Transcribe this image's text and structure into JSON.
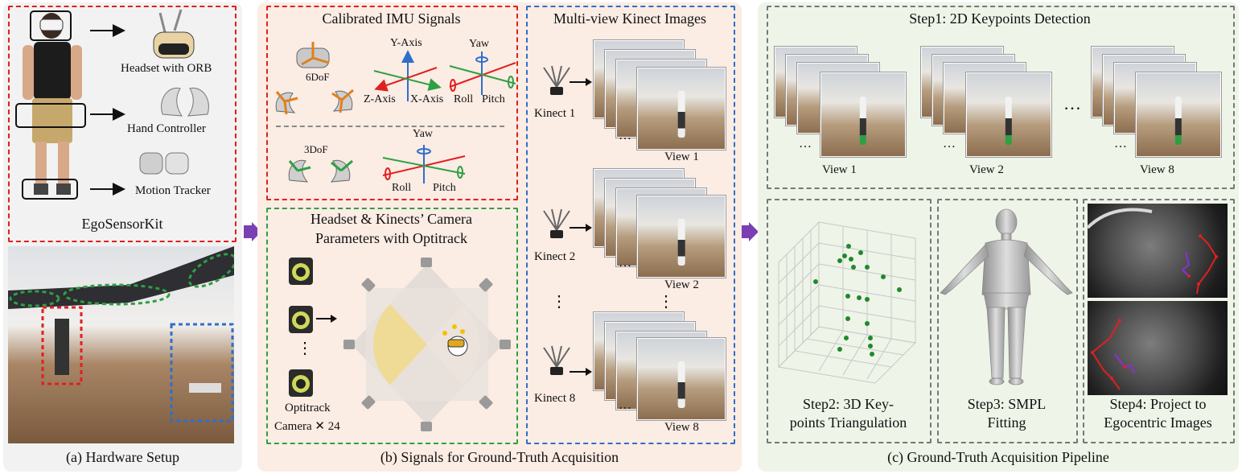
{
  "sections": {
    "a_caption": "(a) Hardware Setup",
    "b_caption": "(b) Signals for Ground-Truth Acquisition",
    "c_caption": "(c) Ground-Truth Acquisition Pipeline"
  },
  "ego_sensor_kit": {
    "title": "EgoSensorKit",
    "headset": "Headset with ORB",
    "hand_controller": "Hand Controller",
    "motion_tracker": "Motion Tracker"
  },
  "imu": {
    "title": "Calibrated IMU Signals",
    "dof6": "6DoF",
    "dof3": "3DoF",
    "y_axis": "Y-Axis",
    "z_axis": "Z-Axis",
    "x_axis": "X-Axis",
    "yaw": "Yaw",
    "roll": "Roll",
    "pitch": "Pitch"
  },
  "camera_params": {
    "title_line1": "Headset & Kinects’ Camera",
    "title_line2": "Parameters with Optitrack",
    "optitrack_line1": "Optitrack",
    "optitrack_line2": "Camera ✕ 24",
    "vdots": "⋮"
  },
  "kinect": {
    "title": "Multi-view Kinect Images",
    "kinect1": "Kinect 1",
    "kinect2": "Kinect 2",
    "kinect8": "Kinect 8",
    "view1": "View 1",
    "view2": "View 2",
    "view8": "View 8",
    "ellipsis": "…",
    "vdots": "⋮"
  },
  "pipeline": {
    "step1": "Step1: 2D Keypoints Detection",
    "view1": "View 1",
    "view2": "View 2",
    "view8": "View 8",
    "ellipsis": "…",
    "step2_line1": "Step2: 3D Key-",
    "step2_line2": "points Triangulation",
    "step3_line1": "Step3: SMPL",
    "step3_line2": "Fitting",
    "step4_line1": "Step4: Project to",
    "step4_line2": "Egocentric Images"
  },
  "colors": {
    "red_dash": "#e02020",
    "green_dash": "#2ea043",
    "blue_dash": "#2f6fc9",
    "gray_dash": "#777777",
    "arrow_purple": "#7b3fb4",
    "panel_a_bg": "#f2f2f2",
    "panel_b_bg": "#fbece4",
    "panel_c_bg": "#eef4e8"
  }
}
